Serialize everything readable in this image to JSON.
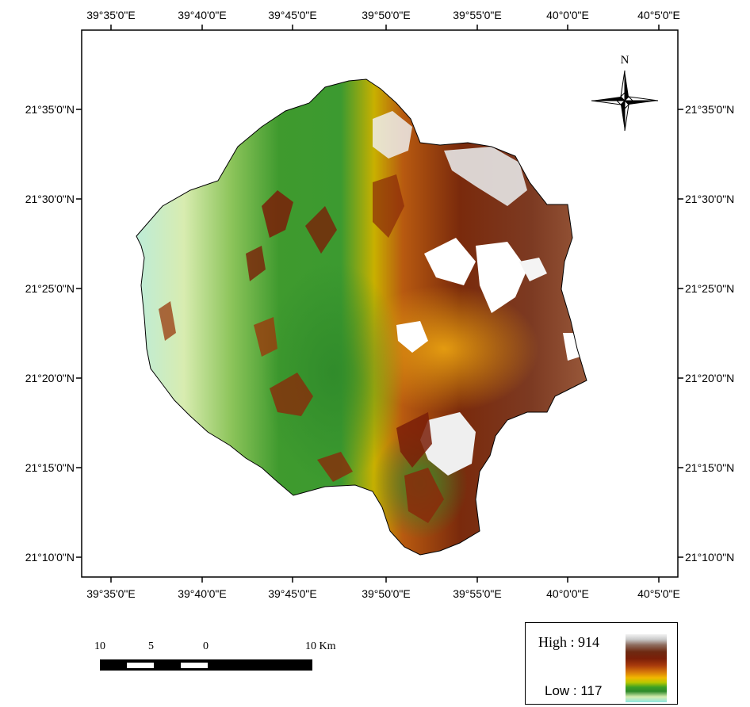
{
  "map": {
    "top_lon_labels": [
      "39°35'0\"E",
      "39°40'0\"E",
      "39°45'0\"E",
      "39°50'0\"E",
      "39°55'0\"E",
      "40°0'0\"E",
      "40°5'0\"E"
    ],
    "bottom_lon_labels": [
      "39°35'0\"E",
      "39°40'0\"E",
      "39°45'0\"E",
      "39°50'0\"E",
      "39°55'0\"E",
      "40°0'0\"E",
      "40°5'0\"E"
    ],
    "left_lat_labels": [
      "21°35'0\"N",
      "21°30'0\"N",
      "21°25'0\"N",
      "21°20'0\"N",
      "21°15'0\"N",
      "21°10'0\"N"
    ],
    "right_lat_labels": [
      "21°35'0\"N",
      "21°30'0\"N",
      "21°25'0\"N",
      "21°20'0\"N",
      "21°15'0\"N",
      "21°10'0\"N"
    ],
    "north_label": "N",
    "colors": {
      "frame": "#000000",
      "low": "#8fe6e0",
      "light_green": "#d6ecae",
      "green": "#2f8a2a",
      "yellow": "#f2b800",
      "orange": "#d87a0a",
      "brown": "#7a1f08",
      "high": "#f4f4f4"
    }
  },
  "scale_bar": {
    "labels": [
      "10",
      "5",
      "0",
      "10 Km"
    ]
  },
  "legend": {
    "high_label": "High : 914",
    "low_label": "Low : 117",
    "high_value": 914,
    "low_value": 117
  }
}
